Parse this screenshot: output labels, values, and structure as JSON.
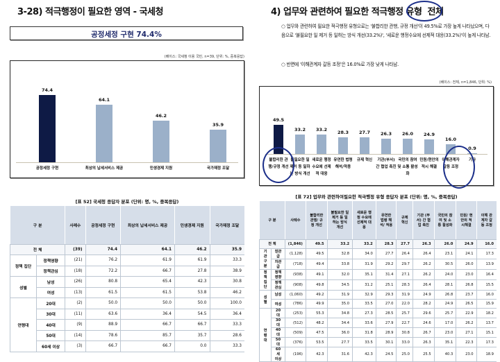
{
  "left": {
    "title": "3-28) 적극행정이 필요한 영역 - 국세청",
    "highlight": "공정세정 구현 74.4%",
    "base_note": "(베이스: 국세청 이용 국민, n=39, 단위: %, 중복응답)",
    "chart_data": {
      "type": "bar",
      "categories": [
        "공정세정 구현",
        "최상의 납세서비스 제공",
        "민생경제 지원",
        "국가재정 조달"
      ],
      "values": [
        74.4,
        64.1,
        46.2,
        35.9
      ],
      "highlight_index": 0,
      "colors": {
        "highlight": "#0e1a45",
        "normal": "#9bb0c9"
      }
    },
    "table": {
      "caption": "[표 52] 국세청 응답자 분포 (단위: 명, %, 중복응답)",
      "headers": [
        "구 분",
        "사례수",
        "공정세정 구현",
        "최상의 납세서비스 제공",
        "민생경제 지원",
        "국가재정 조달"
      ],
      "rows": [
        {
          "group": "전 체",
          "sub": "",
          "n": "(39)",
          "v": [
            "74.4",
            "64.1",
            "46.2",
            "35.9"
          ]
        },
        {
          "group": "정책 집단",
          "sub": "정책영향",
          "n": "(21)",
          "v": [
            "76.2",
            "61.9",
            "61.9",
            "33.3"
          ]
        },
        {
          "group": "",
          "sub": "정책관심",
          "n": "(18)",
          "v": [
            "72.2",
            "66.7",
            "27.8",
            "38.9"
          ]
        },
        {
          "group": "성별",
          "sub": "남성",
          "n": "(26)",
          "v": [
            "80.8",
            "65.4",
            "42.3",
            "30.8"
          ]
        },
        {
          "group": "",
          "sub": "여성",
          "n": "(13)",
          "v": [
            "61.5",
            "61.5",
            "53.8",
            "46.2"
          ]
        },
        {
          "group": "연령대",
          "sub": "20대",
          "n": "(2)",
          "v": [
            "50.0",
            "50.0",
            "50.0",
            "100.0"
          ]
        },
        {
          "group": "",
          "sub": "30대",
          "n": "(11)",
          "v": [
            "63.6",
            "36.4",
            "54.5",
            "36.4"
          ]
        },
        {
          "group": "",
          "sub": "40대",
          "n": "(9)",
          "v": [
            "88.9",
            "66.7",
            "66.7",
            "33.3"
          ]
        },
        {
          "group": "",
          "sub": "50대",
          "n": "(14)",
          "v": [
            "78.6",
            "85.7",
            "35.7",
            "28.6"
          ]
        },
        {
          "group": "",
          "sub": "60세 이상",
          "n": "(3)",
          "v": [
            "66.7",
            "66.7",
            "0.0",
            "33.3"
          ]
        }
      ]
    }
  },
  "right": {
    "title": "4) 업무와 관련하여 필요한 적극행정 유형",
    "title_circled": "전체",
    "bullets": [
      "○ 업무와 관련하여 필요한 적극행정 유형으로는 '불합리한 관행, 규정 개선'이 49.5%로 가장 높게 나타났으며, 다음으로 '불필요한 일 제거 등 일하는 방식 개선(33.2%)', '새로운 행정수요에 선제적 대응(33.2%)'이 높게 나타남.",
      "○ 반면에 '이해관계자 갈등 조정'은 16.0%로 가장 낮게 나타남."
    ],
    "base_note": "(베이스: 전체, n=1,846, 단위: %)",
    "chart_data": {
      "type": "bar",
      "categories": [
        "불합리한 관행/규정 개선",
        "불필요한 일 제거 등 일하는 방식 개선",
        "새로운 행정수요에 선제적 대응",
        "유연한 법령 해석/적용",
        "규제 혁신",
        "기관(부서) 간 협업 촉진",
        "국민의 참여 및 소통 활성화",
        "민원/현안의 적시 해결",
        "이해관계자 갈등 조정",
        "기타"
      ],
      "values": [
        49.5,
        33.2,
        33.2,
        28.3,
        27.7,
        26.3,
        26.0,
        24.9,
        16.0,
        0.9
      ],
      "highlight_index": 0,
      "colors": {
        "highlight": "#0e1a45",
        "normal": "#9bb0c9",
        "annotation": "#1c2f8a"
      }
    },
    "table": {
      "caption": "[표 72] 업무와 관련하여필요한 적극행정 유형 응답자 분포 (단위: 명, %, 중복응답)",
      "headers": [
        "구 분",
        "사례수",
        "불합리한 관행/ 규정 개선",
        "불필요한 일 제거 등 일하는 방식 개선",
        "새로운 행정 수요에 선제적 대응",
        "유연한 법령 해석/ 적용",
        "규제 혁신",
        "기관 (부서) 간 협업 촉진",
        "국민의 참여 및 소통 활성화",
        "민원/ 현안의 적시해결",
        "이해 관계자 갈등 조정"
      ],
      "rows": [
        {
          "group": "전 체",
          "sub": "",
          "n": "(1,846)",
          "v": [
            "49.5",
            "33.2",
            "33.2",
            "28.3",
            "27.7",
            "26.3",
            "26.0",
            "24.9",
            "16.0"
          ]
        },
        {
          "group": "기관 구분",
          "sub": "장관급",
          "n": "(1,128)",
          "v": [
            "49.5",
            "32.8",
            "34.0",
            "27.7",
            "26.4",
            "26.4",
            "23.1",
            "24.1",
            "17.3"
          ]
        },
        {
          "group": "",
          "sub": "차관급",
          "n": "(718)",
          "v": [
            "49.4",
            "33.8",
            "31.9",
            "29.2",
            "29.7",
            "26.2",
            "30.5",
            "26.0",
            "13.9"
          ]
        },
        {
          "group": "정책 집단",
          "sub": "정책영향",
          "n": "(938)",
          "v": [
            "49.1",
            "32.0",
            "35.1",
            "31.4",
            "27.1",
            "26.2",
            "24.0",
            "23.0",
            "16.4"
          ]
        },
        {
          "group": "",
          "sub": "정책관심",
          "n": "(908)",
          "v": [
            "49.8",
            "34.5",
            "31.2",
            "25.1",
            "28.3",
            "26.4",
            "28.1",
            "26.8",
            "15.5"
          ]
        },
        {
          "group": "성별",
          "sub": "남성",
          "n": "(1,060)",
          "v": [
            "49.2",
            "31.9",
            "32.9",
            "29.3",
            "31.9",
            "24.9",
            "26.8",
            "23.7",
            "16.0"
          ]
        },
        {
          "group": "",
          "sub": "여성",
          "n": "(786)",
          "v": [
            "49.9",
            "35.0",
            "33.5",
            "27.0",
            "22.0",
            "28.2",
            "24.9",
            "26.5",
            "15.9"
          ]
        },
        {
          "group": "연령대",
          "sub": "20대",
          "n": "(253)",
          "v": [
            "55.3",
            "34.8",
            "27.3",
            "28.5",
            "25.7",
            "29.6",
            "25.7",
            "22.9",
            "18.2"
          ]
        },
        {
          "group": "",
          "sub": "30대",
          "n": "(512)",
          "v": [
            "48.2",
            "34.4",
            "33.6",
            "27.9",
            "22.7",
            "24.6",
            "17.0",
            "26.2",
            "13.7"
          ]
        },
        {
          "group": "",
          "sub": "40대",
          "n": "(509)",
          "v": [
            "47.5",
            "36.0",
            "31.8",
            "28.9",
            "30.8",
            "26.7",
            "23.0",
            "27.1",
            "15.1"
          ]
        },
        {
          "group": "",
          "sub": "50대",
          "n": "(376)",
          "v": [
            "53.5",
            "27.7",
            "33.5",
            "30.1",
            "33.0",
            "26.3",
            "35.1",
            "22.3",
            "17.3"
          ]
        },
        {
          "group": "",
          "sub": "60세 이상",
          "n": "(196)",
          "v": [
            "42.3",
            "31.6",
            "42.3",
            "24.5",
            "25.0",
            "25.5",
            "40.3",
            "23.0",
            "18.9"
          ]
        }
      ]
    }
  }
}
